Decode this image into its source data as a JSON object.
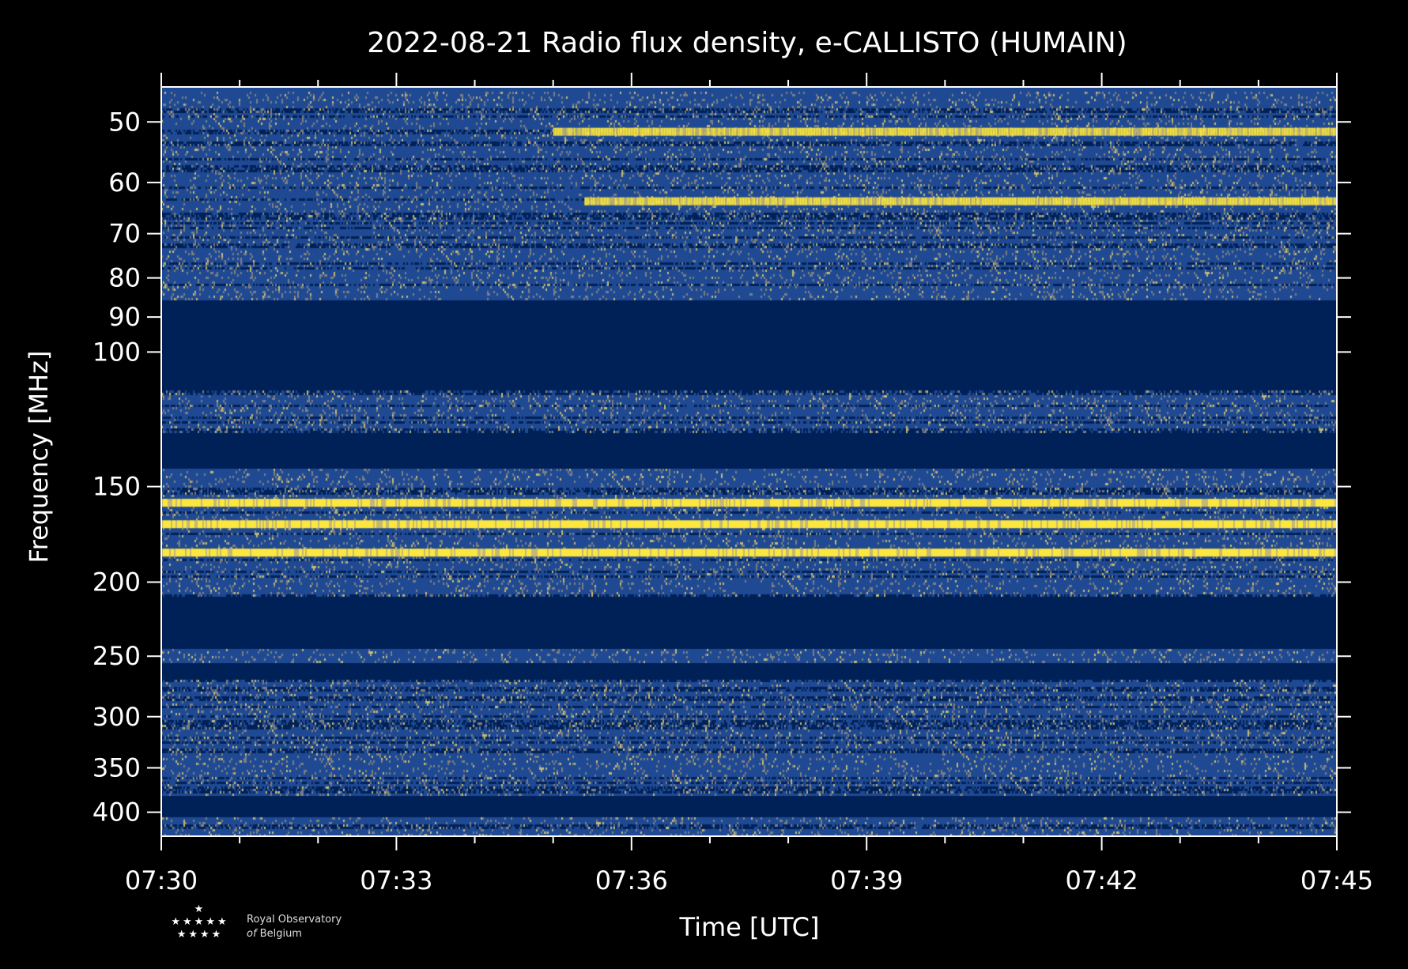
{
  "chart_data": {
    "type": "heatmap",
    "title": "2022-08-21 Radio flux density, e-CALLISTO (HUMAIN)",
    "xlabel": "Time [UTC]",
    "ylabel": "Frequency [MHz]",
    "x_ticks": [
      "07:30",
      "07:33",
      "07:36",
      "07:39",
      "07:42",
      "07:45"
    ],
    "x_range_minutes": [
      0,
      15
    ],
    "y_scale": "log",
    "y_ticks": [
      50,
      60,
      70,
      80,
      90,
      100,
      150,
      200,
      250,
      300,
      350,
      400
    ],
    "ylim": [
      45,
      430
    ],
    "colormap": [
      "#002158",
      "#1f4a93",
      "#7d7f80",
      "#c4b872",
      "#fde73f"
    ],
    "gap_bands_mhz": [
      [
        85,
        112
      ],
      [
        127,
        142
      ],
      [
        208,
        243
      ],
      [
        255,
        268
      ],
      [
        380,
        405
      ]
    ],
    "bright_bands_mhz": [
      {
        "freq": 51.5,
        "start_min": 5.0,
        "end_min": 15
      },
      {
        "freq": 63.5,
        "start_min": 5.4,
        "end_min": 15
      },
      {
        "freq": 157.5,
        "start_min": 0,
        "end_min": 15
      },
      {
        "freq": 168,
        "start_min": 0,
        "end_min": 15
      },
      {
        "freq": 183,
        "start_min": 0,
        "end_min": 15
      }
    ]
  },
  "logo": {
    "stars_top": "★",
    "stars_mid": "★★★★★",
    "stars_bot": "★★★★",
    "line1": "Royal Observatory",
    "line2_of": "of",
    "line2": "Belgium"
  }
}
